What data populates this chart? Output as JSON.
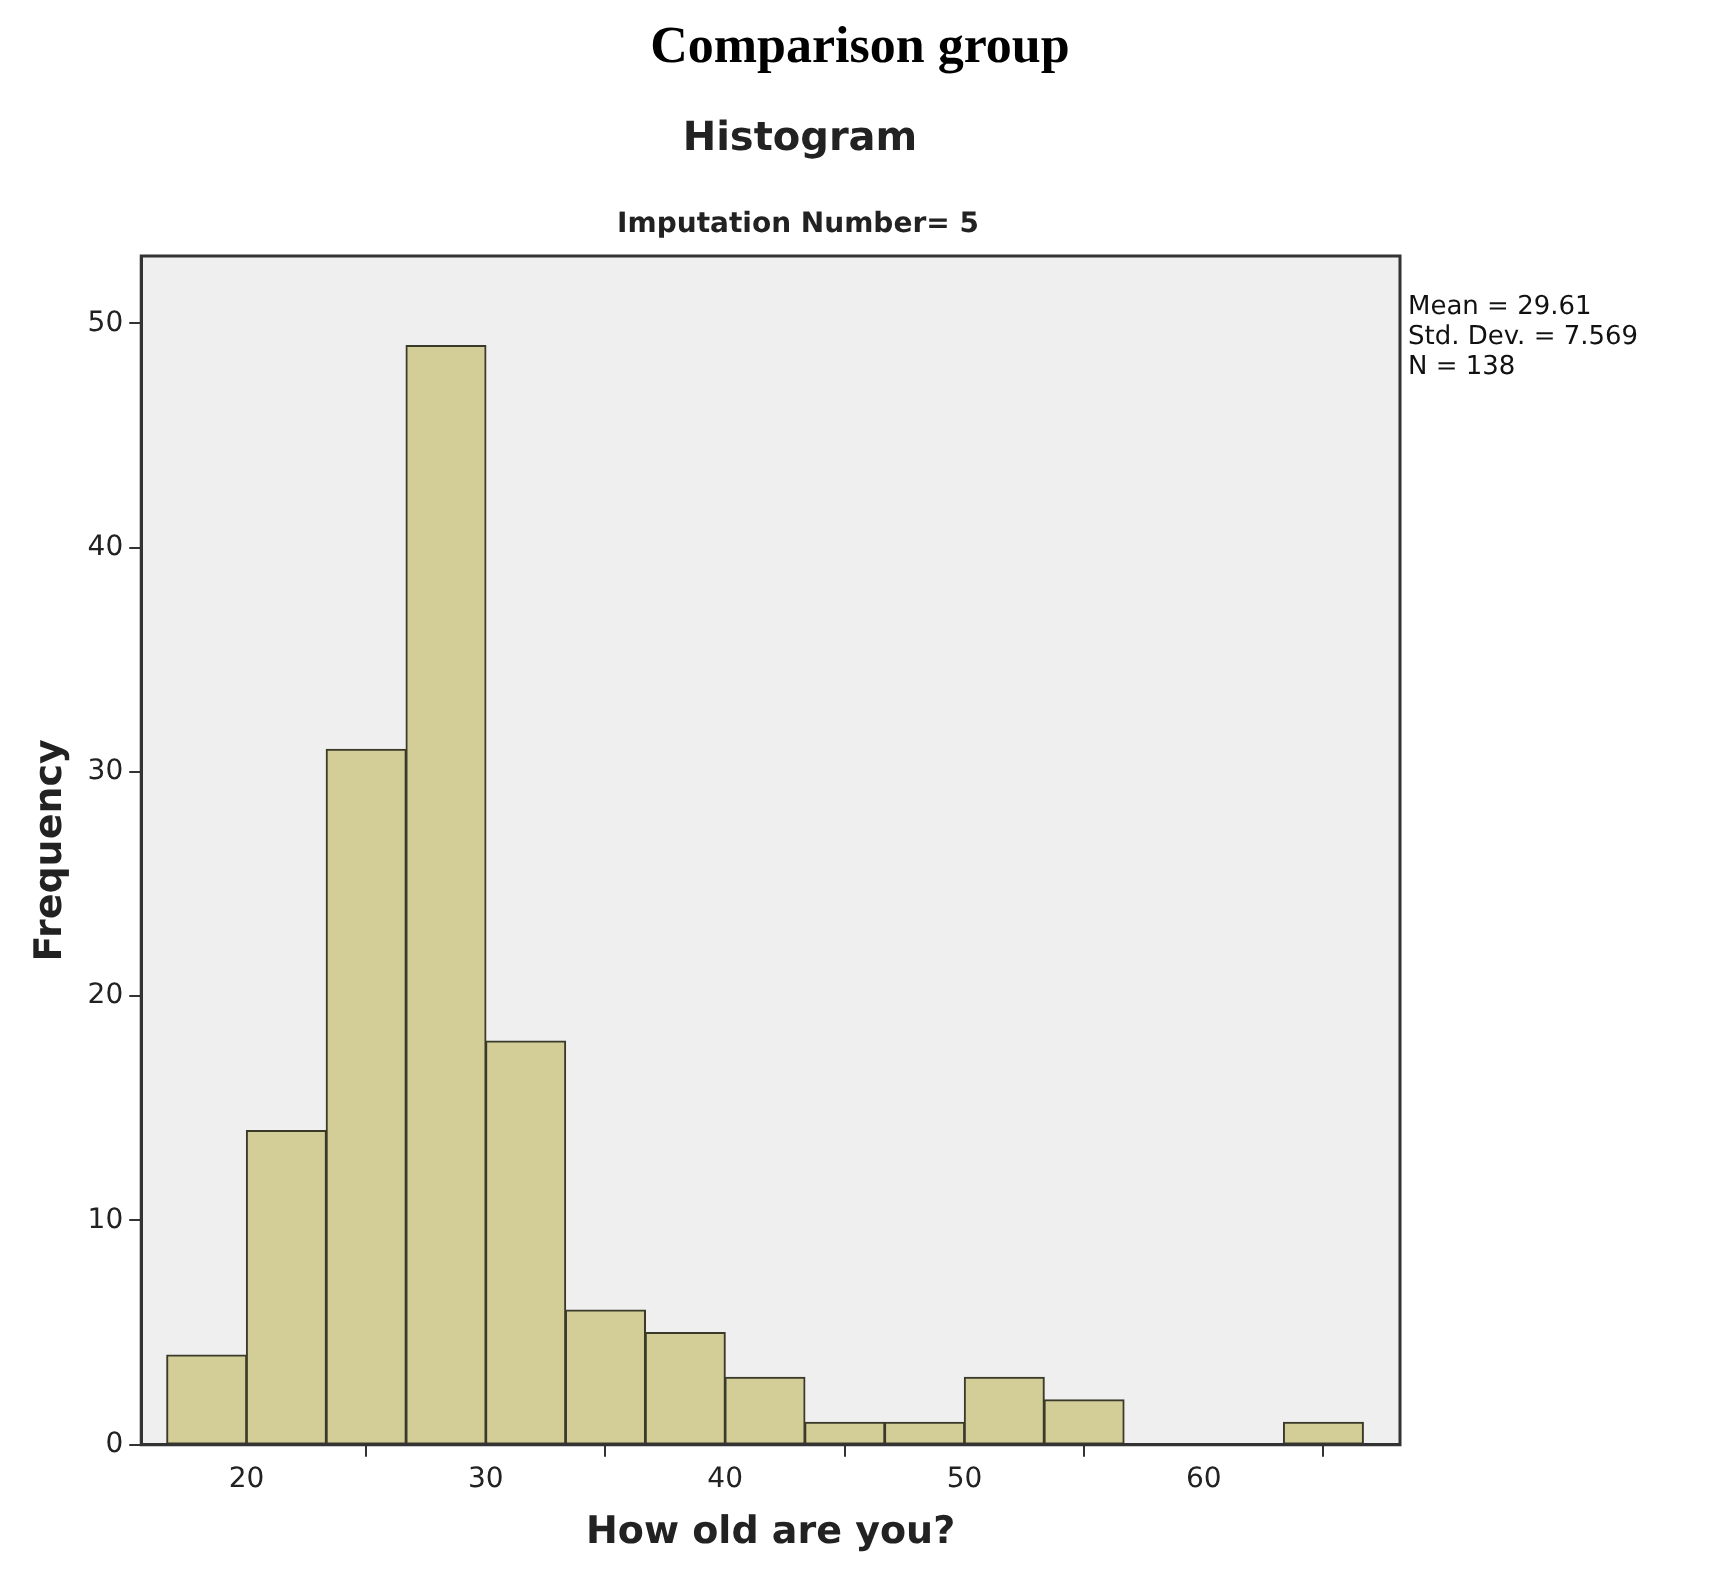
{
  "chart_data": {
    "type": "histogram",
    "title": "Comparison group",
    "subtitle": "Histogram",
    "xlabel": "How old are you?",
    "ylabel": "Frequency",
    "annotations": [
      "Imputation Number= 5",
      "Mean = 29.61",
      "Std. Dev. = 7.569",
      "N = 138"
    ],
    "bins": [
      16.67,
      20,
      23.33,
      26.67,
      30,
      33.33,
      36.67,
      40,
      43.33,
      46.67,
      50,
      53.33,
      56.67,
      60,
      63.33,
      66.67
    ],
    "values": [
      4,
      14,
      31,
      49,
      18,
      6,
      5,
      3,
      1,
      1,
      3,
      2,
      0,
      0,
      1
    ],
    "color": "#d3cd98",
    "xlim": [
      15.6,
      68.2
    ],
    "xticks": [
      20,
      30,
      40,
      50,
      60
    ],
    "ylim": [
      0,
      53
    ],
    "yticks": [
      0,
      10,
      20,
      30,
      40,
      50
    ],
    "grid": false,
    "legend": false
  }
}
